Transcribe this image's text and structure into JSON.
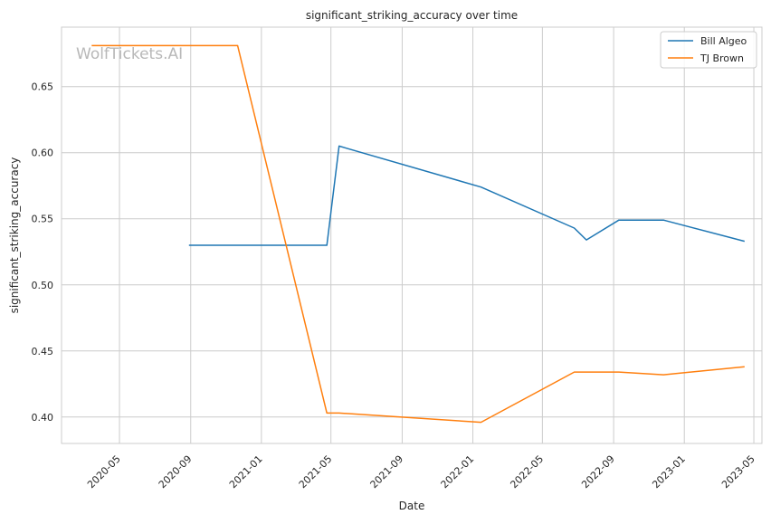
{
  "chart_data": {
    "type": "line",
    "title": "significant_striking_accuracy over time",
    "xlabel": "Date",
    "ylabel": "significant_striking_accuracy",
    "watermark": "WolfTickets.AI",
    "x_ticks": [
      "2020-05",
      "2020-09",
      "2021-01",
      "2021-05",
      "2021-09",
      "2022-01",
      "2022-05",
      "2022-09",
      "2023-01",
      "2023-05"
    ],
    "y_ticks": [
      "0.40",
      "0.45",
      "0.50",
      "0.55",
      "0.60",
      "0.65"
    ],
    "xlim": [
      "2020-01-22",
      "2023-05-15"
    ],
    "ylim": [
      0.38,
      0.695
    ],
    "grid": true,
    "legend_position": "top-right",
    "series": [
      {
        "name": "Bill Algeo",
        "color": "#1f77b4",
        "points": [
          [
            "2020-08-29",
            0.53
          ],
          [
            "2021-04-24",
            0.53
          ],
          [
            "2021-05-15",
            0.605
          ],
          [
            "2022-01-15",
            0.574
          ],
          [
            "2022-06-25",
            0.543
          ],
          [
            "2022-07-16",
            0.534
          ],
          [
            "2022-09-10",
            0.549
          ],
          [
            "2022-11-26",
            0.549
          ],
          [
            "2023-04-15",
            0.533
          ]
        ]
      },
      {
        "name": "TJ Brown",
        "color": "#ff7f0e",
        "points": [
          [
            "2020-03-14",
            0.681
          ],
          [
            "2020-11-21",
            0.681
          ],
          [
            "2021-04-24",
            0.403
          ],
          [
            "2021-05-15",
            0.403
          ],
          [
            "2022-01-15",
            0.396
          ],
          [
            "2022-06-25",
            0.434
          ],
          [
            "2022-09-10",
            0.434
          ],
          [
            "2022-11-26",
            0.432
          ],
          [
            "2023-04-15",
            0.438
          ]
        ]
      }
    ]
  }
}
